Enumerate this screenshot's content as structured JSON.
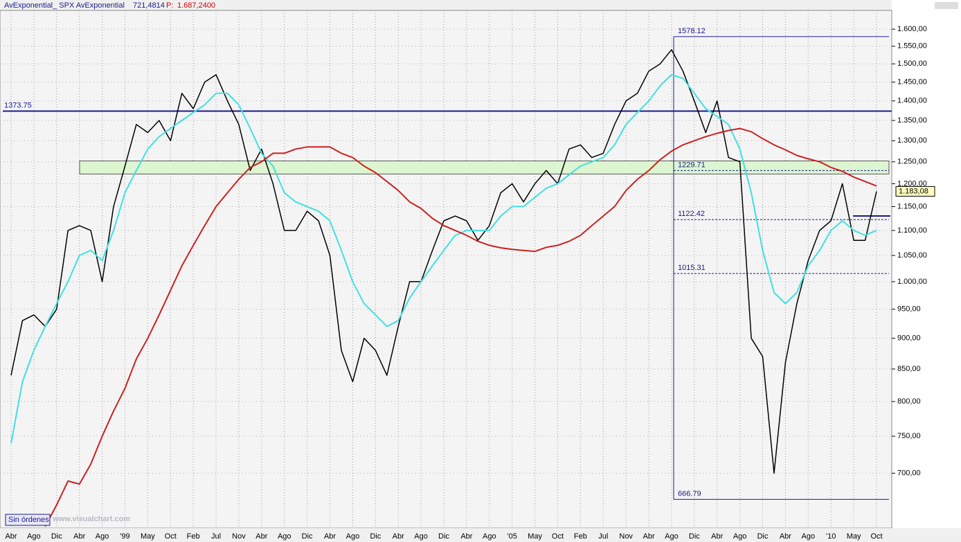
{
  "chart_data": {
    "type": "line",
    "header": {
      "study": "AvExponential_ SPX AvExponential",
      "value": "721,4814",
      "p_label": "P:",
      "p_value": "1.687,2400"
    },
    "categories": [
      "Abr",
      null,
      "Ago",
      null,
      "Dic",
      null,
      "Abr",
      null,
      "Ago",
      null,
      "'99",
      null,
      "May",
      null,
      "Oct",
      null,
      "Feb",
      null,
      "Jul",
      null,
      "Nov",
      null,
      "Abr",
      null,
      "Ago",
      null,
      "Dic",
      null,
      "Abr",
      null,
      "Ago",
      null,
      "Dic",
      null,
      "Abr",
      null,
      "Ago",
      null,
      "Dic",
      null,
      "Abr",
      null,
      "Ago",
      null,
      "'05",
      null,
      "May",
      null,
      "Oct",
      null,
      "Feb",
      null,
      "Jul",
      null,
      "Nov",
      null,
      "Abr",
      null,
      "Ago",
      null,
      "Dic",
      null,
      "Abr",
      null,
      "Ago",
      null,
      "Dic",
      null,
      "Abr",
      null,
      "Ago",
      null,
      "'10",
      null,
      "May",
      null,
      "Oct"
    ],
    "series": [
      {
        "color": "#000000",
        "values": [
          840,
          930,
          940,
          920,
          950,
          1100,
          1110,
          1100,
          1000,
          1150,
          1240,
          1340,
          1320,
          1350,
          1300,
          1420,
          1380,
          1450,
          1470,
          1400,
          1340,
          1230,
          1280,
          1200,
          1100,
          1100,
          1140,
          1120,
          1050,
          880,
          830,
          900,
          880,
          840,
          920,
          1000,
          1000,
          1060,
          1120,
          1130,
          1120,
          1080,
          1110,
          1180,
          1200,
          1160,
          1200,
          1230,
          1200,
          1280,
          1290,
          1260,
          1270,
          1340,
          1400,
          1420,
          1480,
          1500,
          1540,
          1480,
          1400,
          1320,
          1400,
          1260,
          1250,
          900,
          870,
          700,
          860,
          960,
          1040,
          1100,
          1120,
          1200,
          1080,
          1080,
          1183
        ]
      },
      {
        "color": "#40e0e0",
        "values": [
          740,
          830,
          880,
          920,
          960,
          1000,
          1050,
          1060,
          1040,
          1100,
          1180,
          1230,
          1280,
          1310,
          1330,
          1350,
          1370,
          1390,
          1420,
          1420,
          1390,
          1330,
          1270,
          1240,
          1180,
          1160,
          1150,
          1140,
          1120,
          1060,
          1000,
          960,
          940,
          920,
          930,
          970,
          1000,
          1030,
          1060,
          1090,
          1100,
          1100,
          1100,
          1130,
          1150,
          1150,
          1170,
          1190,
          1200,
          1220,
          1240,
          1250,
          1260,
          1290,
          1340,
          1370,
          1400,
          1440,
          1470,
          1460,
          1420,
          1380,
          1360,
          1340,
          1280,
          1180,
          1060,
          980,
          960,
          980,
          1030,
          1060,
          1100,
          1120,
          1100,
          1090,
          1100
        ]
      },
      {
        "color": "#cc2020",
        "values": [
          null,
          null,
          null,
          634,
          660,
          690,
          686,
          712,
          750,
          786,
          820,
          866,
          900,
          940,
          984,
          1030,
          1070,
          1110,
          1150,
          1180,
          1210,
          1237,
          1250,
          1270,
          1270,
          1280,
          1285,
          1285,
          1285,
          1270,
          1260,
          1240,
          1225,
          1205,
          1185,
          1160,
          1146,
          1125,
          1110,
          1100,
          1090,
          1078,
          1070,
          1065,
          1062,
          1060,
          1058,
          1066,
          1070,
          1078,
          1090,
          1110,
          1130,
          1150,
          1185,
          1210,
          1230,
          1255,
          1275,
          1290,
          1300,
          1310,
          1318,
          1325,
          1330,
          1322,
          1305,
          1290,
          1278,
          1265,
          1257,
          1250,
          1237,
          1228,
          1215,
          1205,
          1195
        ]
      }
    ],
    "log_scale": true,
    "ylim": [
      632,
      1657
    ],
    "yticks": [
      {
        "value": 700,
        "label": "700,00"
      },
      {
        "value": 750,
        "label": "750,00"
      },
      {
        "value": 800,
        "label": "800,00"
      },
      {
        "value": 850,
        "label": "850,00"
      },
      {
        "value": 900,
        "label": "900,00"
      },
      {
        "value": 950,
        "label": "950,00"
      },
      {
        "value": 1000,
        "label": "1.000,00"
      },
      {
        "value": 1050,
        "label": "1.050,00"
      },
      {
        "value": 1100,
        "label": "1.100,00"
      },
      {
        "value": 1150,
        "label": "1.150,00"
      },
      {
        "value": 1200,
        "label": "1.200,00"
      },
      {
        "value": 1250,
        "label": "1.250,00"
      },
      {
        "value": 1300,
        "label": "1.300,00"
      },
      {
        "value": 1350,
        "label": "1.350,00"
      },
      {
        "value": 1400,
        "label": "1.400,00"
      },
      {
        "value": 1450,
        "label": "1.450,00"
      },
      {
        "value": 1500,
        "label": "1.500,00"
      },
      {
        "value": 1550,
        "label": "1.550,00"
      },
      {
        "value": 1600,
        "label": "1.600,00"
      }
    ],
    "grid": true,
    "hline": 1373.75,
    "zone": [
      1222,
      1252
    ],
    "zone_color": "#ddf5d0",
    "fib_levels": [
      1578.12,
      1229.71,
      1122.42,
      1015.31,
      666.79
    ],
    "level_color": "#1a1a8c",
    "short_line": 1130,
    "last_value": {
      "value": 1183.08,
      "label": "1.183,08"
    },
    "button": "Sin órdenes",
    "watermark": "www.visualchart.com"
  }
}
